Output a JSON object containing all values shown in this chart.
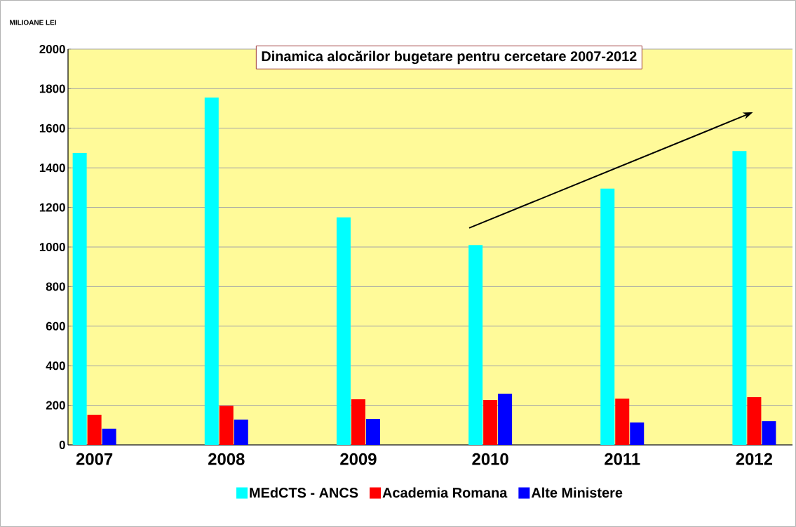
{
  "chart_data": {
    "type": "bar",
    "title": "Dinamica alocărilor bugetare pentru cercetare 2007-2012",
    "ylabel": "MILIOANE LEI",
    "categories": [
      "2007",
      "2008",
      "2009",
      "2010",
      "2011",
      "2012"
    ],
    "series": [
      {
        "name": "MEdCTS - ANCS",
        "color": "#00ffff",
        "values": [
          1475,
          1755,
          1150,
          1010,
          1295,
          1485
        ]
      },
      {
        "name": "Academia Romana",
        "color": "#ff0000",
        "values": [
          152,
          198,
          230,
          227,
          234,
          241
        ]
      },
      {
        "name": "Alte Ministere",
        "color": "#0000ff",
        "values": [
          82,
          128,
          131,
          259,
          113,
          120
        ]
      }
    ],
    "ylim": [
      0,
      2000
    ],
    "yticks": [
      0,
      200,
      400,
      600,
      800,
      1000,
      1200,
      1400,
      1600,
      1800,
      2000
    ],
    "grid": "y",
    "legend": "bottom"
  }
}
